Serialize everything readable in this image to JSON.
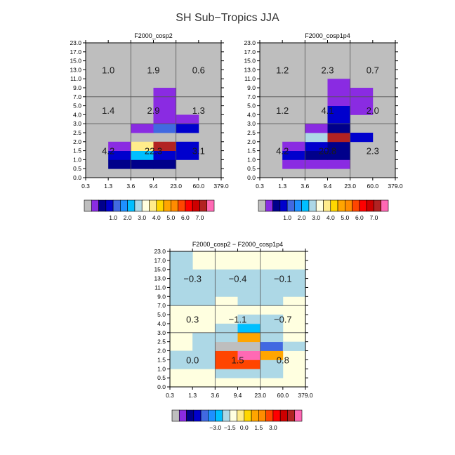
{
  "figure": {
    "title": "SH Sub−Tropics JJA"
  },
  "chart_data": [
    {
      "type": "heatmap",
      "title": "F2000_cosp2",
      "x_bin_labels": [
        "0.3",
        "1.3",
        "3.6",
        "9.4",
        "23.0",
        "60.0",
        "379.0"
      ],
      "y_bin_labels": [
        "0.0",
        "0.5",
        "1.0",
        "1.5",
        "2.0",
        "2.5",
        "3.0",
        "4.0",
        "5.0",
        "7.0",
        "9.0",
        "11.0",
        "13.0",
        "15.0",
        "17.0",
        "23.0"
      ],
      "group_lines_x": [
        "3.6",
        "23.0"
      ],
      "group_lines_y": [
        "3.0",
        "7.0"
      ],
      "group_labels": [
        {
          "text": "1.0",
          "xg": 0,
          "yg": 2
        },
        {
          "text": "1.9",
          "xg": 1,
          "yg": 2
        },
        {
          "text": "0.6",
          "xg": 2,
          "yg": 2
        },
        {
          "text": "1.4",
          "xg": 0,
          "yg": 1
        },
        {
          "text": "2.9",
          "xg": 1,
          "yg": 1
        },
        {
          "text": "1.3",
          "xg": 2,
          "yg": 1
        },
        {
          "text": "4.2",
          "xg": 0,
          "yg": 0
        },
        {
          "text": "22.3",
          "xg": 1,
          "yg": 0
        },
        {
          "text": "3.1",
          "xg": 2,
          "yg": 0
        }
      ],
      "background_color_index": 0,
      "cells": [
        {
          "x": 1,
          "y": 1,
          "c": 2
        },
        {
          "x": 2,
          "y": 1,
          "c": 2
        },
        {
          "x": 3,
          "y": 1,
          "c": 2
        },
        {
          "x": 1,
          "y": 2,
          "c": 3
        },
        {
          "x": 2,
          "y": 2,
          "c": 6
        },
        {
          "x": 3,
          "y": 2,
          "c": 3
        },
        {
          "x": 4,
          "y": 2,
          "c": 3
        },
        {
          "x": 1,
          "y": 3,
          "c": 1
        },
        {
          "x": 2,
          "y": 3,
          "c": 9
        },
        {
          "x": 3,
          "y": 3,
          "c": 16
        },
        {
          "x": 4,
          "y": 3,
          "c": 3
        },
        {
          "x": 2,
          "y": 5,
          "c": 1
        },
        {
          "x": 3,
          "y": 5,
          "c": 4
        },
        {
          "x": 4,
          "y": 5,
          "c": 3
        },
        {
          "x": 3,
          "y": 6,
          "c": 1
        },
        {
          "x": 4,
          "y": 6,
          "c": 1
        },
        {
          "x": 3,
          "y": 7,
          "c": 1
        },
        {
          "x": 3,
          "y": 8,
          "c": 1
        },
        {
          "x": 3,
          "y": 9,
          "c": 1
        }
      ],
      "colorbar": {
        "colors": [
          "#bebebe",
          "#8a2be2",
          "#00008b",
          "#0000cd",
          "#4169e1",
          "#1e90ff",
          "#00bfff",
          "#add8e6",
          "#ffffe0",
          "#ffec8b",
          "#ffd700",
          "#ffa500",
          "#ff8c00",
          "#ff4500",
          "#ff0000",
          "#cd0000",
          "#b22222",
          "#ff69b4"
        ],
        "labels": [
          "1.0",
          "2.0",
          "3.0",
          "4.0",
          "5.0",
          "6.0",
          "7.0"
        ]
      }
    },
    {
      "type": "heatmap",
      "title": "F2000_cosp1p4",
      "x_bin_labels": [
        "0.3",
        "1.3",
        "3.6",
        "9.4",
        "23.0",
        "60.0",
        "379.0"
      ],
      "y_bin_labels": [
        "0.0",
        "0.5",
        "1.0",
        "1.5",
        "2.0",
        "2.5",
        "3.0",
        "4.0",
        "5.0",
        "7.0",
        "9.0",
        "11.0",
        "13.0",
        "15.0",
        "17.0",
        "23.0"
      ],
      "group_lines_x": [
        "3.6",
        "23.0"
      ],
      "group_lines_y": [
        "3.0",
        "7.0"
      ],
      "group_labels": [
        {
          "text": "1.2",
          "xg": 0,
          "yg": 2
        },
        {
          "text": "2.3",
          "xg": 1,
          "yg": 2
        },
        {
          "text": "0.7",
          "xg": 2,
          "yg": 2
        },
        {
          "text": "1.2",
          "xg": 0,
          "yg": 1
        },
        {
          "text": "4.1",
          "xg": 1,
          "yg": 1
        },
        {
          "text": "2.0",
          "xg": 2,
          "yg": 1
        },
        {
          "text": "4.2",
          "xg": 0,
          "yg": 0
        },
        {
          "text": "20.8",
          "xg": 1,
          "yg": 0
        },
        {
          "text": "2.3",
          "xg": 2,
          "yg": 0
        }
      ],
      "background_color_index": 0,
      "cells": [
        {
          "x": 1,
          "y": 1,
          "c": 1
        },
        {
          "x": 2,
          "y": 1,
          "c": 1
        },
        {
          "x": 3,
          "y": 1,
          "c": 1
        },
        {
          "x": 1,
          "y": 2,
          "c": 3
        },
        {
          "x": 2,
          "y": 2,
          "c": 2
        },
        {
          "x": 3,
          "y": 2,
          "c": 2
        },
        {
          "x": 1,
          "y": 3,
          "c": 1
        },
        {
          "x": 2,
          "y": 3,
          "c": 3
        },
        {
          "x": 3,
          "y": 3,
          "c": 2
        },
        {
          "x": 2,
          "y": 4,
          "c": 7
        },
        {
          "x": 3,
          "y": 4,
          "c": 16
        },
        {
          "x": 4,
          "y": 4,
          "c": 3
        },
        {
          "x": 2,
          "y": 5,
          "c": 1
        },
        {
          "x": 3,
          "y": 5,
          "c": 2
        },
        {
          "x": 3,
          "y": 6,
          "c": 3
        },
        {
          "x": 3,
          "y": 7,
          "c": 3
        },
        {
          "x": 4,
          "y": 7,
          "c": 1
        },
        {
          "x": 3,
          "y": 8,
          "c": 1
        },
        {
          "x": 4,
          "y": 8,
          "c": 1
        },
        {
          "x": 3,
          "y": 9,
          "c": 1
        },
        {
          "x": 4,
          "y": 9,
          "c": 1
        },
        {
          "x": 3,
          "y": 10,
          "c": 1
        }
      ],
      "colorbar": {
        "colors": [
          "#bebebe",
          "#8a2be2",
          "#00008b",
          "#0000cd",
          "#4169e1",
          "#1e90ff",
          "#00bfff",
          "#add8e6",
          "#ffffe0",
          "#ffec8b",
          "#ffd700",
          "#ffa500",
          "#ff8c00",
          "#ff4500",
          "#ff0000",
          "#cd0000",
          "#b22222",
          "#ff69b4"
        ],
        "labels": [
          "1.0",
          "2.0",
          "3.0",
          "4.0",
          "5.0",
          "6.0",
          "7.0"
        ]
      }
    },
    {
      "type": "heatmap",
      "title": "F2000_cosp2 − F2000_cosp1p4",
      "x_bin_labels": [
        "0.3",
        "1.3",
        "3.6",
        "9.4",
        "23.0",
        "60.0",
        "379.0"
      ],
      "y_bin_labels": [
        "0.0",
        "0.5",
        "1.0",
        "1.5",
        "2.0",
        "2.5",
        "3.0",
        "4.0",
        "5.0",
        "7.0",
        "9.0",
        "11.0",
        "13.0",
        "15.0",
        "17.0",
        "23.0"
      ],
      "group_lines_x": [
        "3.6",
        "23.0"
      ],
      "group_lines_y": [
        "3.0",
        "7.0"
      ],
      "group_labels": [
        {
          "text": "−0.3",
          "xg": 0,
          "yg": 2
        },
        {
          "text": "−0.4",
          "xg": 1,
          "yg": 2
        },
        {
          "text": "−0.1",
          "xg": 2,
          "yg": 2
        },
        {
          "text": "0.3",
          "xg": 0,
          "yg": 1
        },
        {
          "text": "−1.1",
          "xg": 1,
          "yg": 1
        },
        {
          "text": "−0.7",
          "xg": 2,
          "yg": 1
        },
        {
          "text": "0.0",
          "xg": 0,
          "yg": 0
        },
        {
          "text": "1.5",
          "xg": 1,
          "yg": 0
        },
        {
          "text": "0.8",
          "xg": 2,
          "yg": 0
        }
      ],
      "background_color_index": 8,
      "cells": [
        {
          "x": 2,
          "y": 1,
          "c": 7
        },
        {
          "x": 3,
          "y": 1,
          "c": 7
        },
        {
          "x": 4,
          "y": 1,
          "c": 7
        },
        {
          "x": 0,
          "y": 2,
          "c": 7
        },
        {
          "x": 1,
          "y": 2,
          "c": 7
        },
        {
          "x": 2,
          "y": 2,
          "c": 13
        },
        {
          "x": 3,
          "y": 2,
          "c": 13
        },
        {
          "x": 4,
          "y": 2,
          "c": 7
        },
        {
          "x": 0,
          "y": 3,
          "c": 7
        },
        {
          "x": 1,
          "y": 3,
          "c": 7
        },
        {
          "x": 2,
          "y": 3,
          "c": 13
        },
        {
          "x": 3,
          "y": 3,
          "c": 17
        },
        {
          "x": 4,
          "y": 3,
          "c": 11
        },
        {
          "x": 1,
          "y": 4,
          "c": 7
        },
        {
          "x": 2,
          "y": 4,
          "c": 0
        },
        {
          "x": 3,
          "y": 4,
          "c": 0
        },
        {
          "x": 4,
          "y": 4,
          "c": 4
        },
        {
          "x": 5,
          "y": 4,
          "c": 7
        },
        {
          "x": 1,
          "y": 5,
          "c": 7
        },
        {
          "x": 2,
          "y": 5,
          "c": 7
        },
        {
          "x": 3,
          "y": 5,
          "c": 11
        },
        {
          "x": 4,
          "y": 5,
          "c": 7
        },
        {
          "x": 2,
          "y": 6,
          "c": 7
        },
        {
          "x": 3,
          "y": 6,
          "c": 6
        },
        {
          "x": 4,
          "y": 6,
          "c": 7
        },
        {
          "x": 3,
          "y": 7,
          "c": 7
        },
        {
          "x": 4,
          "y": 7,
          "c": 7
        },
        {
          "x": 0,
          "y": 9,
          "c": 7
        },
        {
          "x": 1,
          "y": 9,
          "c": 7
        },
        {
          "x": 3,
          "y": 9,
          "c": 7
        },
        {
          "x": 4,
          "y": 9,
          "c": 7
        },
        {
          "x": 0,
          "y": 10,
          "c": 7
        },
        {
          "x": 1,
          "y": 10,
          "c": 7
        },
        {
          "x": 2,
          "y": 10,
          "c": 7
        },
        {
          "x": 3,
          "y": 10,
          "c": 7
        },
        {
          "x": 4,
          "y": 10,
          "c": 7
        },
        {
          "x": 5,
          "y": 10,
          "c": 7
        },
        {
          "x": 0,
          "y": 11,
          "c": 7
        },
        {
          "x": 1,
          "y": 11,
          "c": 7
        },
        {
          "x": 2,
          "y": 11,
          "c": 7
        },
        {
          "x": 3,
          "y": 11,
          "c": 7
        },
        {
          "x": 4,
          "y": 11,
          "c": 7
        },
        {
          "x": 5,
          "y": 11,
          "c": 7
        },
        {
          "x": 0,
          "y": 12,
          "c": 7
        },
        {
          "x": 1,
          "y": 12,
          "c": 7
        },
        {
          "x": 2,
          "y": 12,
          "c": 7
        },
        {
          "x": 3,
          "y": 12,
          "c": 7
        },
        {
          "x": 4,
          "y": 12,
          "c": 7
        },
        {
          "x": 5,
          "y": 12,
          "c": 7
        },
        {
          "x": 0,
          "y": 13,
          "c": 7
        },
        {
          "x": 0,
          "y": 14,
          "c": 7
        }
      ],
      "colorbar": {
        "colors": [
          "#bebebe",
          "#8a2be2",
          "#00008b",
          "#0000cd",
          "#4169e1",
          "#1e90ff",
          "#00bfff",
          "#add8e6",
          "#ffffe0",
          "#ffec8b",
          "#ffd700",
          "#ffa500",
          "#ff8c00",
          "#ff4500",
          "#ff0000",
          "#cd0000",
          "#b22222",
          "#ff69b4"
        ],
        "labels": [
          "−3.0",
          "−1.5",
          "0.0",
          "1.5",
          "3.0"
        ]
      }
    }
  ]
}
